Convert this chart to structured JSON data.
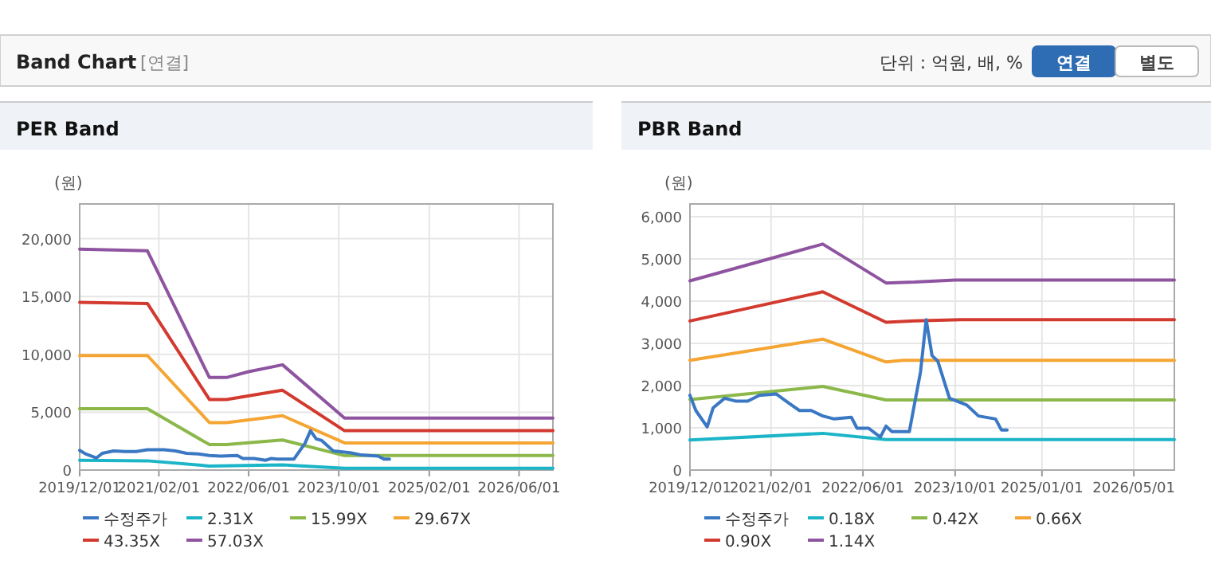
{
  "chart_data": [
    {
      "type": "line",
      "title": "PER Band",
      "ylabel": "(원)",
      "annotations": [
        "Band Chart",
        "[연결]",
        "단위 : 억원, 배, %",
        "연결",
        "별도"
      ],
      "xlim": [
        "2019-12-01",
        "2026-12-01"
      ],
      "xticks": [
        {
          "value": "2019-12-01",
          "label": "2019/12/01"
        },
        {
          "value": "2021-02-01",
          "label": "2021/02/01"
        },
        {
          "value": "2022-06-01",
          "label": "2022/06/01"
        },
        {
          "value": "2023-10-01",
          "label": "2023/10/01"
        },
        {
          "value": "2025-02-01",
          "label": "2025/02/01"
        },
        {
          "value": "2026-06-01",
          "label": "2026/06/01"
        }
      ],
      "ylim": [
        0,
        23000
      ],
      "yticks": [
        0,
        {
          "value": 5000,
          "label": "5,000"
        },
        {
          "value": 10000,
          "label": "10,000"
        },
        {
          "value": 15000,
          "label": "15,000"
        },
        {
          "value": 20000,
          "label": "20,000"
        }
      ],
      "grid": true,
      "legend": "bottom",
      "marker": "none",
      "line_style": "solid",
      "series": [
        {
          "name": "수정주가",
          "color": "#3a78c3",
          "x": [
            "2019-12",
            "2020-01",
            "2020-03",
            "2020-04",
            "2020-06",
            "2020-08",
            "2020-10",
            "2020-12",
            "2021-03",
            "2021-05",
            "2021-07",
            "2021-09",
            "2021-11",
            "2022-01",
            "2022-04",
            "2022-05",
            "2022-07",
            "2022-09",
            "2022-10",
            "2022-11",
            "2023-02",
            "2023-04",
            "2023-05",
            "2023-06",
            "2023-07",
            "2023-09",
            "2023-12",
            "2024-02",
            "2024-05",
            "2024-06",
            "2024-07"
          ],
          "values": [
            1700,
            1400,
            1050,
            1450,
            1650,
            1600,
            1600,
            1750,
            1750,
            1650,
            1450,
            1400,
            1250,
            1200,
            1250,
            1000,
            1000,
            850,
            1000,
            950,
            950,
            2300,
            3400,
            2700,
            2550,
            1650,
            1500,
            1300,
            1200,
            950,
            950
          ]
        },
        {
          "name": "2.31X",
          "color": "#1cb5c8",
          "x": [
            "2019-12",
            "2020-12",
            "2021-11",
            "2022-12",
            "2023-11",
            "2026-12"
          ],
          "values": [
            850,
            800,
            350,
            450,
            150,
            150
          ]
        },
        {
          "name": "15.99X",
          "color": "#8cb84a",
          "x": [
            "2019-12",
            "2020-12",
            "2021-11",
            "2022-02",
            "2022-12",
            "2023-11",
            "2026-12"
          ],
          "values": [
            5300,
            5300,
            2200,
            2200,
            2600,
            1250,
            1250
          ]
        },
        {
          "name": "29.67X",
          "color": "#f5a533",
          "x": [
            "2019-12",
            "2020-12",
            "2021-11",
            "2022-02",
            "2022-12",
            "2023-11",
            "2026-12"
          ],
          "values": [
            9900,
            9900,
            4100,
            4100,
            4700,
            2350,
            2350
          ]
        },
        {
          "name": "43.35X",
          "color": "#d33a2f",
          "x": [
            "2019-12",
            "2020-12",
            "2021-11",
            "2022-02",
            "2022-12",
            "2023-11",
            "2026-12"
          ],
          "values": [
            14500,
            14400,
            6100,
            6100,
            6900,
            3400,
            3400
          ]
        },
        {
          "name": "57.03X",
          "color": "#8e54a0",
          "x": [
            "2019-12",
            "2020-12",
            "2021-11",
            "2022-02",
            "2022-06",
            "2022-12",
            "2023-11",
            "2026-12"
          ],
          "values": [
            19100,
            18950,
            8000,
            8000,
            8500,
            9100,
            4500,
            4500
          ]
        }
      ]
    },
    {
      "type": "line",
      "title": "PBR Band",
      "ylabel": "(원)",
      "xlim": [
        "2019-12-01",
        "2026-12-01"
      ],
      "xticks": [
        {
          "value": "2019-12-01",
          "label": "2019/12/01"
        },
        {
          "value": "2021-02-01",
          "label": "2021/02/01"
        },
        {
          "value": "2022-06-01",
          "label": "2022/06/01"
        },
        {
          "value": "2023-10-01",
          "label": "2023/10/01"
        },
        {
          "value": "2025-01-01",
          "label": "2025/01/01"
        },
        {
          "value": "2026-05-01",
          "label": "2026/05/01"
        }
      ],
      "ylim": [
        0,
        6300
      ],
      "yticks": [
        0,
        {
          "value": 1000,
          "label": "1,000"
        },
        {
          "value": 2000,
          "label": "2,000"
        },
        {
          "value": 3000,
          "label": "3,000"
        },
        {
          "value": 4000,
          "label": "4,000"
        },
        {
          "value": 5000,
          "label": "5,000"
        },
        {
          "value": 6000,
          "label": "6,000"
        }
      ],
      "grid": true,
      "legend": "bottom",
      "marker": "none",
      "line_style": "solid",
      "series": [
        {
          "name": "수정주가",
          "color": "#3a78c3",
          "x": [
            "2019-12",
            "2020-01",
            "2020-03",
            "2020-04",
            "2020-06",
            "2020-08",
            "2020-10",
            "2020-12",
            "2021-03",
            "2021-05",
            "2021-07",
            "2021-09",
            "2021-11",
            "2022-01",
            "2022-04",
            "2022-05",
            "2022-07",
            "2022-09",
            "2022-10",
            "2022-11",
            "2023-02",
            "2023-04",
            "2023-05",
            "2023-06",
            "2023-07",
            "2023-09",
            "2023-12",
            "2024-02",
            "2024-05",
            "2024-06",
            "2024-07"
          ],
          "values": [
            1770,
            1410,
            1020,
            1470,
            1700,
            1630,
            1630,
            1770,
            1800,
            1600,
            1410,
            1410,
            1280,
            1210,
            1250,
            990,
            990,
            780,
            1040,
            910,
            910,
            2320,
            3560,
            2710,
            2580,
            1700,
            1540,
            1280,
            1210,
            950,
            950
          ]
        },
        {
          "name": "0.18X",
          "color": "#1cb5c8",
          "x": [
            "2019-12",
            "2021-11",
            "2022-10",
            "2026-12"
          ],
          "values": [
            710,
            870,
            720,
            720
          ]
        },
        {
          "name": "0.42X",
          "color": "#8cb84a",
          "x": [
            "2019-12",
            "2021-11",
            "2022-10",
            "2026-12"
          ],
          "values": [
            1670,
            1980,
            1660,
            1660
          ]
        },
        {
          "name": "0.66X",
          "color": "#f5a533",
          "x": [
            "2019-12",
            "2021-11",
            "2022-10",
            "2023-01",
            "2026-12"
          ],
          "values": [
            2600,
            3100,
            2560,
            2600,
            2600
          ]
        },
        {
          "name": "0.90X",
          "color": "#d33a2f",
          "x": [
            "2019-12",
            "2021-11",
            "2022-10",
            "2023-03",
            "2023-11",
            "2026-12"
          ],
          "values": [
            3530,
            4220,
            3500,
            3530,
            3560,
            3560
          ]
        },
        {
          "name": "1.14X",
          "color": "#8e54a0",
          "x": [
            "2019-12",
            "2021-11",
            "2022-10",
            "2023-03",
            "2023-10",
            "2026-12"
          ],
          "values": [
            4480,
            5350,
            4430,
            4450,
            4500,
            4500
          ]
        }
      ]
    }
  ]
}
